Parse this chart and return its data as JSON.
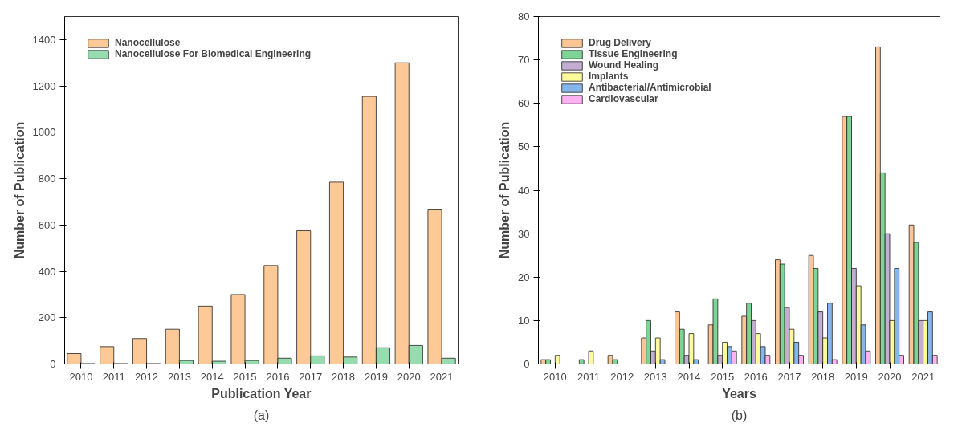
{
  "chart_data": [
    {
      "type": "bar",
      "xlabel": "Publication Year",
      "ylabel": "Number of Publication",
      "annotations": [
        "(a)"
      ],
      "categories": [
        "2010",
        "2011",
        "2012",
        "2013",
        "2014",
        "2015",
        "2016",
        "2017",
        "2018",
        "2019",
        "2020",
        "2021"
      ],
      "series": [
        {
          "name": "Nanocellulose",
          "color": "#fdc997",
          "values": [
            45,
            75,
            110,
            150,
            250,
            300,
            425,
            575,
            785,
            1155,
            1300,
            665
          ]
        },
        {
          "name": "Nanocellulose For Biomedical Engineering",
          "color": "#97dcae",
          "values": [
            2,
            2,
            2,
            15,
            12,
            15,
            25,
            35,
            30,
            70,
            80,
            25
          ]
        }
      ],
      "ylim": [
        0,
        1500
      ],
      "yticks": [
        0,
        200,
        400,
        600,
        800,
        1000,
        1200,
        1400
      ],
      "grid": false,
      "legend": "top left"
    },
    {
      "type": "bar",
      "xlabel": "Years",
      "ylabel": "Number of Publication",
      "annotations": [
        "(b)"
      ],
      "categories": [
        "2010",
        "2011",
        "2012",
        "2013",
        "2014",
        "2015",
        "2016",
        "2017",
        "2018",
        "2019",
        "2020",
        "2021"
      ],
      "series": [
        {
          "name": "Drug Delivery",
          "color": "#fdc594",
          "values": [
            1,
            null,
            2,
            6,
            12,
            9,
            11,
            24,
            25,
            57,
            73,
            32
          ]
        },
        {
          "name": "Tissue Engineering",
          "color": "#7dd494",
          "values": [
            1,
            1,
            1,
            10,
            8,
            15,
            14,
            23,
            22,
            57,
            44,
            28
          ]
        },
        {
          "name": "Wound Healing",
          "color": "#c3add3",
          "values": [
            null,
            null,
            null,
            3,
            2,
            2,
            10,
            13,
            12,
            22,
            30,
            10
          ]
        },
        {
          "name": "Implants",
          "color": "#fdfa9c",
          "values": [
            2,
            3,
            null,
            6,
            7,
            5,
            7,
            8,
            6,
            18,
            10,
            10
          ]
        },
        {
          "name": "Antibacterial/Antimicrobial",
          "color": "#86b7ec",
          "values": [
            null,
            null,
            null,
            1,
            1,
            4,
            4,
            5,
            14,
            9,
            22,
            12
          ]
        },
        {
          "name": "Cardiovascular",
          "color": "#fdb3f2",
          "values": [
            null,
            null,
            null,
            null,
            null,
            3,
            2,
            2,
            1,
            3,
            2,
            2
          ]
        }
      ],
      "ylim": [
        0,
        80
      ],
      "yticks": [
        0,
        10,
        20,
        30,
        40,
        50,
        60,
        70,
        80
      ],
      "grid": false,
      "legend": "top left"
    }
  ]
}
